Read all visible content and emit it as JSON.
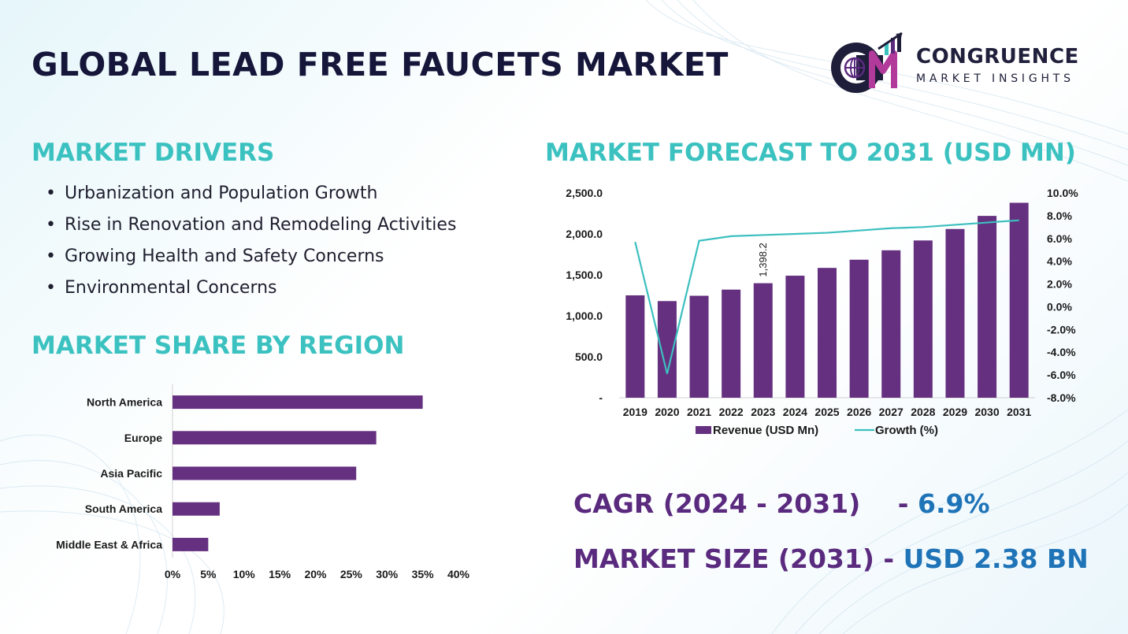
{
  "title": "GLOBAL LEAD FREE FAUCETS MARKET",
  "logo": {
    "name": "CONGRUENCE",
    "sub": "MARKET INSIGHTS"
  },
  "drivers": {
    "title": "MARKET DRIVERS",
    "items": [
      "Urbanization and Population Growth",
      "Rise in Renovation and Remodeling Activities",
      "Growing Health and Safety Concerns",
      "Environmental Concerns"
    ]
  },
  "region": {
    "title": "MARKET SHARE BY REGION"
  },
  "forecast": {
    "title": "MARKET FORECAST TO 2031 (USD MN)"
  },
  "stats": {
    "cagr_label": "CAGR (2024 - 2031)",
    "cagr_sep": "-",
    "cagr_value": "6.9%",
    "size_label": "MARKET SIZE (2031)",
    "size_sep": "-",
    "size_value": "USD 2.38 BN"
  },
  "colors": {
    "bar": "#65307f",
    "line": "#3cbfbf",
    "title": "#3bc2c0",
    "stat_label": "#5a2a7e",
    "stat_value": "#1f74b8"
  },
  "chart_data": [
    {
      "type": "bar",
      "orientation": "horizontal",
      "categories": [
        "North America",
        "Europe",
        "Asia Pacific",
        "South America",
        "Middle East & Africa"
      ],
      "values": [
        35,
        28.5,
        25.7,
        6.6,
        5
      ],
      "x_ticks": [
        "0%",
        "5%",
        "10%",
        "15%",
        "20%",
        "25%",
        "30%",
        "35%",
        "40%"
      ],
      "xlim": [
        0,
        40
      ],
      "grid": false
    },
    {
      "type": "bar",
      "categories": [
        "2019",
        "2020",
        "2021",
        "2022",
        "2023",
        "2024",
        "2025",
        "2026",
        "2027",
        "2028",
        "2029",
        "2030",
        "2031"
      ],
      "series": [
        {
          "name": "Revenue (USD Mn)",
          "type": "bar",
          "axis": "left",
          "values": [
            1250,
            1180,
            1245,
            1320,
            1398.2,
            1490,
            1585,
            1685,
            1800,
            1920,
            2060,
            2220,
            2380
          ]
        },
        {
          "name": "Growth (%)",
          "type": "line",
          "axis": "right",
          "values": [
            5.7,
            -5.9,
            5.8,
            6.2,
            6.3,
            6.4,
            6.5,
            6.7,
            6.9,
            7.0,
            7.2,
            7.4,
            7.6
          ]
        }
      ],
      "data_labels": [
        {
          "category": "2023",
          "text": "1,398.2"
        }
      ],
      "y_left_ticks": [
        "-",
        "500.0",
        "1,000.0",
        "1,500.0",
        "2,000.0",
        "2,500.0"
      ],
      "ylim_left": [
        0,
        2500
      ],
      "y_right_ticks": [
        "-8.0%",
        "-6.0%",
        "-4.0%",
        "-2.0%",
        "0.0%",
        "2.0%",
        "4.0%",
        "6.0%",
        "8.0%",
        "10.0%"
      ],
      "ylim_right": [
        -8,
        10
      ],
      "legend": "bottom",
      "grid": false
    }
  ]
}
